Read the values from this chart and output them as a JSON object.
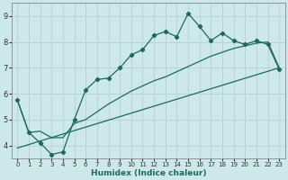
{
  "xlabel": "Humidex (Indice chaleur)",
  "bg_color": "#cde8e8",
  "grid_color": "#b8d4d4",
  "line_color": "#1a6b5a",
  "xlim": [
    -0.5,
    23.5
  ],
  "ylim": [
    3.5,
    9.5
  ],
  "yticks": [
    4,
    5,
    6,
    7,
    8,
    9
  ],
  "xticks": [
    0,
    1,
    2,
    3,
    4,
    5,
    6,
    7,
    8,
    9,
    10,
    11,
    12,
    13,
    14,
    15,
    16,
    17,
    18,
    19,
    20,
    21,
    22,
    23
  ],
  "line1_x": [
    0,
    1,
    2,
    3,
    4,
    5,
    6,
    7,
    8,
    9,
    10,
    11,
    12,
    13,
    14,
    15,
    16,
    17,
    18,
    19,
    20,
    21,
    22,
    23
  ],
  "line1_y": [
    5.75,
    4.5,
    4.1,
    3.65,
    3.75,
    5.0,
    6.15,
    6.55,
    6.6,
    7.0,
    7.5,
    7.7,
    8.25,
    8.4,
    8.2,
    9.1,
    8.6,
    8.05,
    8.35,
    8.05,
    7.9,
    8.05,
    7.9,
    6.95
  ],
  "line2_x": [
    0,
    23
  ],
  "line2_y": [
    3.9,
    7.0
  ],
  "line3_x": [
    0,
    1,
    2,
    3,
    4,
    5,
    6,
    7,
    8,
    9,
    10,
    11,
    12,
    13,
    14,
    15,
    16,
    17,
    18,
    19,
    20,
    21,
    22,
    23
  ],
  "line3_y": [
    5.75,
    4.5,
    4.55,
    4.3,
    4.3,
    4.85,
    5.0,
    5.3,
    5.6,
    5.85,
    6.1,
    6.3,
    6.5,
    6.65,
    6.85,
    7.05,
    7.25,
    7.45,
    7.6,
    7.75,
    7.85,
    7.95,
    8.0,
    7.0
  ]
}
